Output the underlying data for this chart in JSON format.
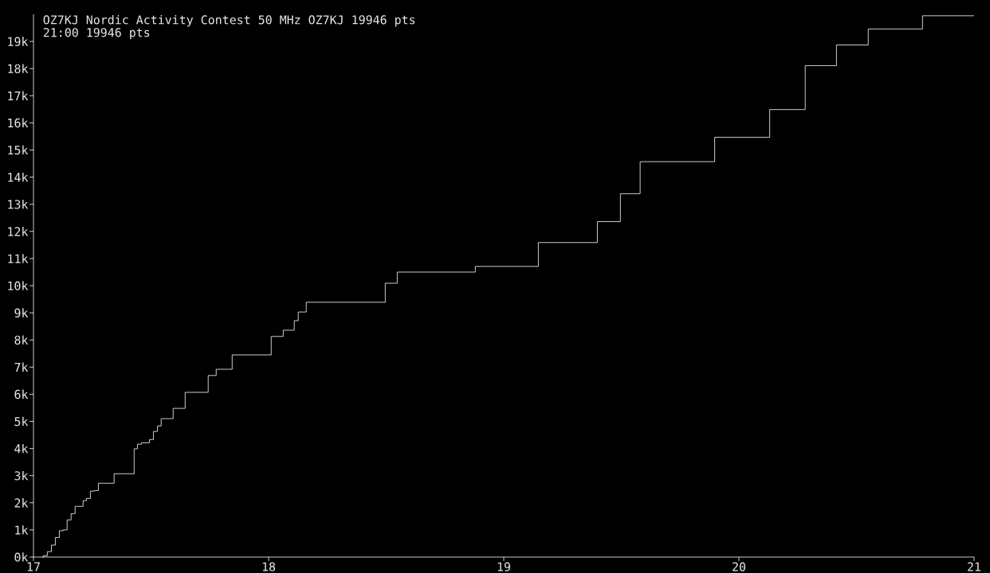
{
  "chart_data": {
    "type": "step",
    "title": "OZ7KJ Nordic Activity Contest 50 MHz OZ7KJ 19946 pts",
    "subtitle": "21:00 19946 pts",
    "x": [
      17.037,
      17.042,
      17.059,
      17.076,
      17.093,
      17.11,
      17.126,
      17.143,
      17.16,
      17.177,
      17.211,
      17.225,
      17.242,
      17.259,
      17.276,
      17.343,
      17.428,
      17.442,
      17.459,
      17.493,
      17.51,
      17.527,
      17.543,
      17.594,
      17.645,
      17.743,
      17.777,
      17.845,
      18.011,
      18.062,
      18.109,
      18.126,
      18.16,
      18.496,
      18.547,
      18.879,
      19.147,
      19.398,
      19.496,
      19.58,
      19.897,
      20.131,
      20.282,
      20.415,
      20.55,
      20.781,
      21
    ],
    "values": [
      0,
      50,
      200,
      440,
      720,
      970,
      1000,
      1370,
      1600,
      1870,
      2080,
      2160,
      2430,
      2450,
      2720,
      3070,
      3990,
      4160,
      4210,
      4330,
      4630,
      4830,
      5100,
      5480,
      6070,
      6690,
      6920,
      7450,
      8130,
      8360,
      8710,
      9030,
      9390,
      10090,
      10500,
      10710,
      11590,
      12360,
      13390,
      14570,
      15470,
      16490,
      18110,
      18870,
      19460,
      19946,
      19946
    ],
    "color": "#ffffff",
    "xlim": [
      17,
      21
    ],
    "xticks": [
      17,
      18,
      19,
      20,
      21
    ],
    "ylim": [
      0,
      20000
    ],
    "yticks": [
      {
        "value": 0,
        "label": "0k"
      },
      {
        "value": 1000,
        "label": "1k"
      },
      {
        "value": 2000,
        "label": "2k"
      },
      {
        "value": 3000,
        "label": "3k"
      },
      {
        "value": 4000,
        "label": "4k"
      },
      {
        "value": 5000,
        "label": "5k"
      },
      {
        "value": 6000,
        "label": "6k"
      },
      {
        "value": 7000,
        "label": "7k"
      },
      {
        "value": 8000,
        "label": "8k"
      },
      {
        "value": 9000,
        "label": "9k"
      },
      {
        "value": 10000,
        "label": "10k"
      },
      {
        "value": 11000,
        "label": "11k"
      },
      {
        "value": 12000,
        "label": "12k"
      },
      {
        "value": 13000,
        "label": "13k"
      },
      {
        "value": 14000,
        "label": "14k"
      },
      {
        "value": 15000,
        "label": "15k"
      },
      {
        "value": 16000,
        "label": "16k"
      },
      {
        "value": 17000,
        "label": "17k"
      },
      {
        "value": 18000,
        "label": "18k"
      },
      {
        "value": 19000,
        "label": "19k"
      }
    ],
    "grid": false
  }
}
